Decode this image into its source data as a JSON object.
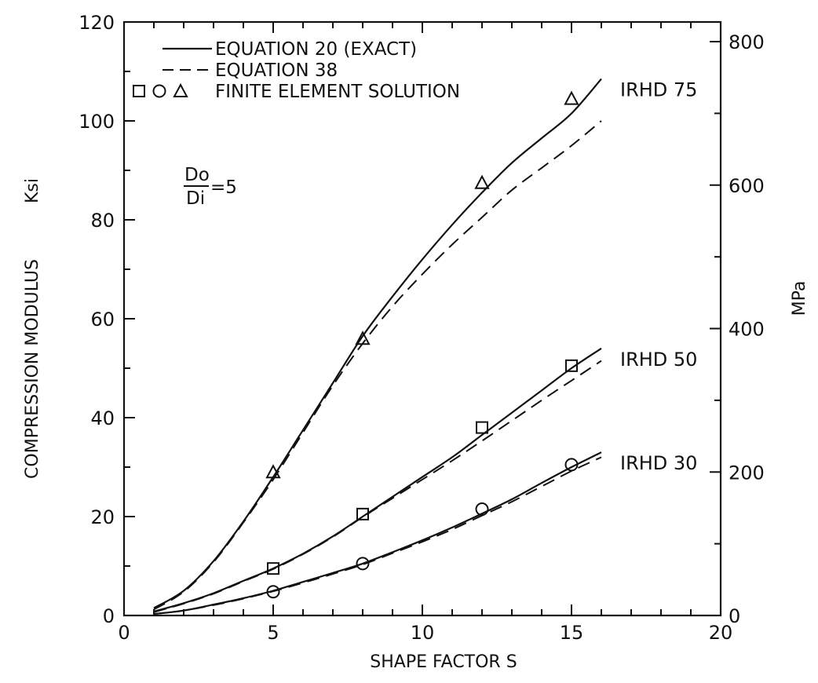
{
  "chart_data": {
    "type": "line",
    "xlabel": "SHAPE FACTOR S",
    "ylabel": "COMPRESSION MODULUS",
    "ylabel_unit": "Ksi",
    "y2label": "MPa",
    "xlim": [
      0,
      20
    ],
    "ylim": [
      0,
      120
    ],
    "y2lim": [
      0,
      827.4
    ],
    "x_ticks": [
      0,
      5,
      10,
      15,
      20
    ],
    "y_ticks": [
      0,
      20,
      40,
      60,
      80,
      100,
      120
    ],
    "y2_ticks": [
      0,
      200,
      400,
      600,
      800
    ],
    "grid": false,
    "legend_position": "top-left",
    "legend": [
      {
        "label": "EQUATION 20 (EXACT)",
        "style": "solid"
      },
      {
        "label": "EQUATION 38",
        "style": "dashed"
      },
      {
        "label": "FINITE ELEMENT SOLUTION",
        "style": "markers",
        "markers": [
          "square",
          "circle",
          "triangle"
        ]
      }
    ],
    "ratio_annotation": {
      "numerator": "Do",
      "denominator": "Di",
      "relation": "=5"
    },
    "series": [
      {
        "name": "IRHD 75",
        "exact": {
          "x": [
            1,
            2,
            3,
            4,
            5,
            6,
            7,
            8,
            9,
            10,
            11,
            12,
            13,
            14,
            15,
            16
          ],
          "y": [
            1.5,
            5.0,
            11.0,
            19.0,
            28.0,
            37.5,
            47.0,
            56.5,
            64.5,
            72.0,
            79.0,
            85.5,
            91.5,
            96.5,
            101.5,
            108.5
          ]
        },
        "approx": {
          "x": [
            1,
            2,
            3,
            4,
            5,
            6,
            7,
            8,
            9,
            10,
            11,
            12,
            13,
            14,
            15,
            16
          ],
          "y": [
            1.2,
            4.8,
            10.8,
            18.8,
            27.5,
            37.0,
            46.5,
            55.0,
            62.5,
            69.0,
            75.0,
            80.5,
            86.0,
            90.5,
            95.0,
            100.0
          ]
        },
        "fe": {
          "marker": "triangle",
          "x": [
            5,
            8,
            12,
            15
          ],
          "y": [
            29.0,
            56.0,
            87.5,
            104.5
          ]
        }
      },
      {
        "name": "IRHD 50",
        "exact": {
          "x": [
            1,
            2,
            3,
            4,
            5,
            6,
            7,
            8,
            9,
            10,
            11,
            12,
            13,
            14,
            15,
            16
          ],
          "y": [
            0.8,
            2.5,
            4.5,
            7.0,
            9.5,
            12.5,
            16.0,
            20.0,
            24.0,
            28.0,
            32.0,
            36.5,
            41.0,
            45.5,
            50.0,
            54.0
          ]
        },
        "approx": {
          "x": [
            1,
            2,
            3,
            4,
            5,
            6,
            7,
            8,
            9,
            10,
            11,
            12,
            13,
            14,
            15,
            16
          ],
          "y": [
            0.7,
            2.4,
            4.4,
            6.9,
            9.4,
            12.4,
            15.9,
            19.9,
            23.7,
            27.5,
            31.3,
            35.3,
            39.4,
            43.5,
            47.5,
            51.5
          ]
        },
        "fe": {
          "marker": "square",
          "x": [
            5,
            8,
            12,
            15
          ],
          "y": [
            9.5,
            20.5,
            38.0,
            50.5
          ]
        }
      },
      {
        "name": "IRHD 30",
        "exact": {
          "x": [
            1,
            2,
            3,
            4,
            5,
            6,
            7,
            8,
            9,
            10,
            11,
            12,
            13,
            14,
            15,
            16
          ],
          "y": [
            0.3,
            1.0,
            2.2,
            3.5,
            5.0,
            6.8,
            8.6,
            10.5,
            12.8,
            15.2,
            17.8,
            20.6,
            23.5,
            26.8,
            30.0,
            33.0
          ]
        },
        "approx": {
          "x": [
            1,
            2,
            3,
            4,
            5,
            6,
            7,
            8,
            9,
            10,
            11,
            12,
            13,
            14,
            15,
            16
          ],
          "y": [
            0.3,
            1.0,
            2.1,
            3.4,
            4.9,
            6.6,
            8.4,
            10.3,
            12.6,
            14.9,
            17.4,
            20.2,
            23.0,
            26.1,
            29.2,
            32.0
          ]
        },
        "fe": {
          "marker": "circle",
          "x": [
            5,
            8,
            12,
            15
          ],
          "y": [
            4.8,
            10.5,
            21.5,
            30.5
          ]
        }
      }
    ]
  }
}
